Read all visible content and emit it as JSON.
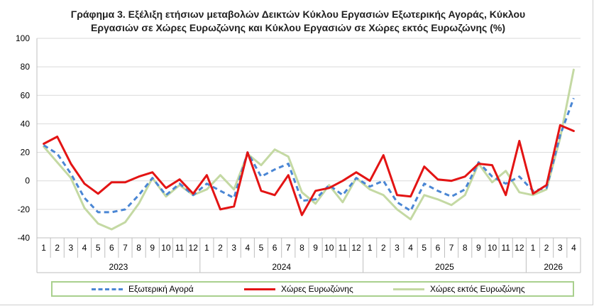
{
  "chart_data": {
    "type": "line",
    "title_line1": "Γράφημα 3. Εξέλιξη  ετήσιων μεταβολών Δεικτών Κύκλου Εργασιών Εξωτερικής Αγοράς,  Κύκλου",
    "title_line2": "Εργασιών σε Χώρες Ευρωζώνης και Κύκλου Εργασιών σε Χώρες εκτός Ευρωζώνης (%)",
    "ylim": [
      -40,
      100
    ],
    "yticks": [
      -40,
      -20,
      0,
      20,
      40,
      60,
      80,
      100
    ],
    "grid": true,
    "legend_position": "bottom",
    "months": [
      "1",
      "2",
      "3",
      "4",
      "5",
      "6",
      "7",
      "8",
      "9",
      "10",
      "11",
      "12",
      "1",
      "2",
      "3",
      "4",
      "5",
      "6",
      "7",
      "8",
      "9",
      "10",
      "11",
      "12",
      "1",
      "2",
      "3",
      "4",
      "5",
      "6",
      "7",
      "8",
      "9",
      "10",
      "11",
      "12",
      "1",
      "2",
      "3",
      "4"
    ],
    "years": [
      {
        "label": "2023",
        "count": 12
      },
      {
        "label": "2024",
        "count": 12
      },
      {
        "label": "2025",
        "count": 12
      },
      {
        "label": "2026",
        "count": 4
      }
    ],
    "series": [
      {
        "name": "Εξωτερική Αγορά",
        "color": "#4a86d4",
        "dash": "dashed",
        "values": [
          25,
          19,
          5,
          -12,
          -22,
          -22,
          -20,
          -10,
          2,
          -10,
          -2,
          -10,
          -2,
          -7,
          -12,
          20,
          3,
          8,
          12,
          -14,
          -13,
          -3,
          -10,
          2,
          -4,
          0,
          -15,
          -21,
          -2,
          -7,
          -11,
          -6,
          13,
          3,
          -2,
          3,
          -7,
          -5,
          32,
          58
        ]
      },
      {
        "name": "Χώρες Ευρωζώνης",
        "color": "#e31414",
        "dash": "solid",
        "values": [
          26,
          31,
          12,
          -2,
          -9,
          -1,
          -1,
          3,
          6,
          -5,
          1,
          -9,
          4,
          -20,
          -18,
          20,
          -7,
          -10,
          4,
          -24,
          -7,
          -5,
          0,
          6,
          0,
          18,
          -10,
          -11,
          10,
          1,
          0,
          3,
          12,
          11,
          -10,
          28,
          -9,
          -3,
          39,
          35
        ]
      },
      {
        "name": "Χώρες εκτός Ευρωζώνης",
        "color": "#c4d9a3",
        "dash": "solid",
        "values": [
          24,
          13,
          2,
          -19,
          -30,
          -34,
          -29,
          -16,
          2,
          -11,
          -3,
          -10,
          -6,
          4,
          -6,
          19,
          11,
          22,
          17,
          -8,
          -16,
          -3,
          -15,
          2,
          -6,
          -10,
          -20,
          -27,
          -10,
          -13,
          -17,
          -10,
          12,
          -1,
          7,
          -8,
          -10,
          -6,
          30,
          78
        ]
      }
    ]
  }
}
